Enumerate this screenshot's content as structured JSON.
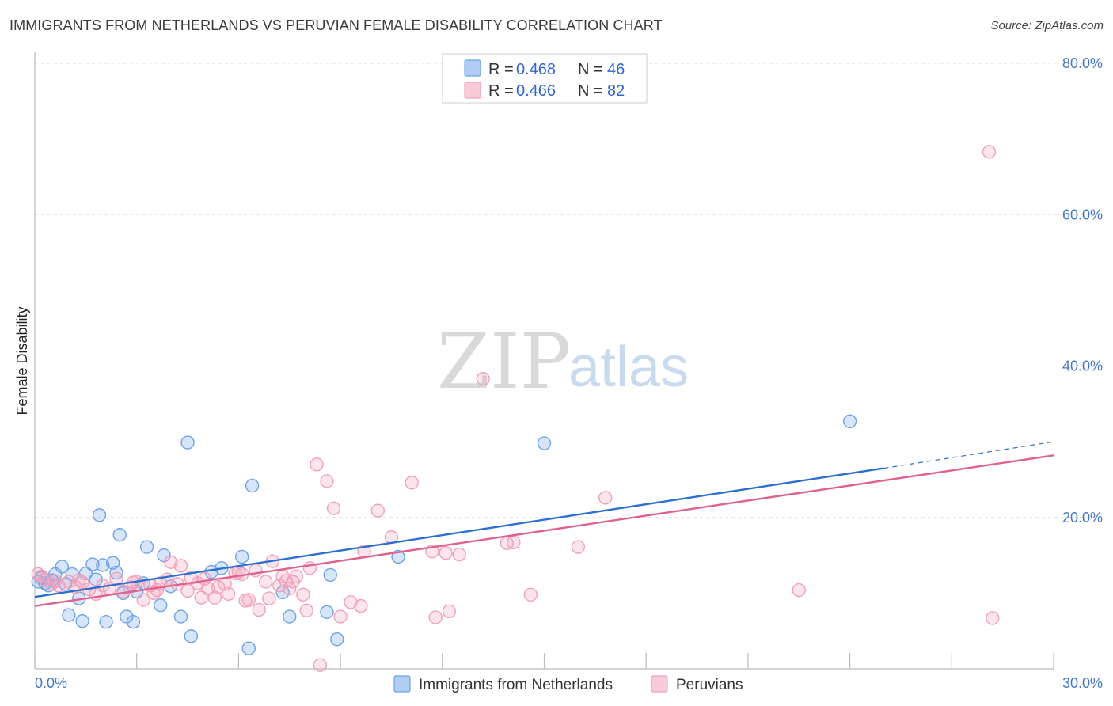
{
  "header": {
    "title": "IMMIGRANTS FROM NETHERLANDS VS PERUVIAN FEMALE DISABILITY CORRELATION CHART",
    "source": "Source: ZipAtlas.com"
  },
  "watermark": {
    "zip": "ZIP",
    "atlas": "atlas"
  },
  "chart_data": {
    "type": "scatter",
    "title": "IMMIGRANTS FROM NETHERLANDS VS PERUVIAN FEMALE DISABILITY CORRELATION CHART",
    "xlabel": "",
    "ylabel": "Female Disability",
    "xlim": [
      0,
      30
    ],
    "ylim": [
      0,
      80
    ],
    "x_tick_labels": [
      "0.0%",
      "30.0%"
    ],
    "y_ticks": [
      20,
      40,
      60,
      80
    ],
    "y_tick_labels": [
      "20.0%",
      "40.0%",
      "60.0%",
      "80.0%"
    ],
    "grid": true,
    "legend_position": "top-center",
    "stats": [
      {
        "r_label": "R = ",
        "r": "0.468",
        "n_label": "N = ",
        "n": "46"
      },
      {
        "r_label": "R = ",
        "r": "0.466",
        "n_label": "N = ",
        "n": "82"
      }
    ],
    "series": [
      {
        "name": "Immigrants from Netherlands",
        "color": "#6fa3e8",
        "line_color": "#2a6fd1",
        "trend": {
          "x0": 0,
          "y0": 9.5,
          "x1": 25.0,
          "y1": 26.5,
          "dash_to_x": 30,
          "dash_to_y": 30.0
        },
        "points": [
          [
            0.1,
            11.5
          ],
          [
            0.3,
            11.3
          ],
          [
            0.5,
            11.7
          ],
          [
            0.6,
            12.5
          ],
          [
            0.8,
            13.5
          ],
          [
            0.9,
            11.2
          ],
          [
            1.0,
            7.1
          ],
          [
            1.1,
            12.5
          ],
          [
            1.3,
            9.3
          ],
          [
            1.4,
            6.3
          ],
          [
            1.5,
            12.6
          ],
          [
            1.7,
            13.8
          ],
          [
            1.8,
            11.8
          ],
          [
            1.9,
            20.3
          ],
          [
            2.0,
            13.7
          ],
          [
            2.1,
            6.2
          ],
          [
            2.3,
            14.0
          ],
          [
            2.4,
            12.7
          ],
          [
            2.5,
            17.7
          ],
          [
            2.6,
            10.0
          ],
          [
            2.7,
            6.9
          ],
          [
            2.9,
            6.2
          ],
          [
            3.0,
            10.2
          ],
          [
            3.2,
            11.3
          ],
          [
            3.3,
            16.1
          ],
          [
            3.8,
            15.0
          ],
          [
            3.7,
            8.4
          ],
          [
            4.0,
            10.9
          ],
          [
            4.3,
            6.9
          ],
          [
            4.5,
            29.9
          ],
          [
            4.6,
            4.3
          ],
          [
            5.2,
            12.8
          ],
          [
            5.5,
            13.3
          ],
          [
            6.1,
            14.8
          ],
          [
            6.3,
            2.7
          ],
          [
            6.4,
            24.2
          ],
          [
            7.3,
            10.1
          ],
          [
            7.5,
            6.9
          ],
          [
            8.6,
            7.5
          ],
          [
            8.7,
            12.4
          ],
          [
            8.9,
            3.9
          ],
          [
            10.7,
            14.8
          ],
          [
            15.0,
            29.8
          ],
          [
            24.0,
            32.7
          ],
          [
            0.2,
            12.0
          ],
          [
            0.4,
            11.0
          ]
        ]
      },
      {
        "name": "Peruvians",
        "color": "#f2a0b9",
        "line_color": "#e0608e",
        "trend": {
          "x0": 0,
          "y0": 8.3,
          "x1": 30,
          "y1": 28.2
        },
        "points": [
          [
            0.1,
            12.5
          ],
          [
            0.3,
            11.8
          ],
          [
            0.5,
            11.2
          ],
          [
            0.7,
            11.0
          ],
          [
            1.0,
            11.5
          ],
          [
            1.2,
            10.8
          ],
          [
            1.4,
            11.4
          ],
          [
            1.6,
            10.5
          ],
          [
            1.8,
            9.9
          ],
          [
            2.0,
            11.0
          ],
          [
            2.2,
            10.6
          ],
          [
            2.4,
            11.9
          ],
          [
            2.6,
            10.2
          ],
          [
            2.8,
            10.8
          ],
          [
            3.0,
            11.5
          ],
          [
            3.2,
            9.1
          ],
          [
            3.4,
            11.0
          ],
          [
            3.5,
            10.0
          ],
          [
            3.7,
            11.3
          ],
          [
            3.9,
            11.8
          ],
          [
            4.0,
            14.1
          ],
          [
            4.2,
            11.2
          ],
          [
            4.3,
            13.6
          ],
          [
            4.5,
            10.3
          ],
          [
            4.6,
            12.0
          ],
          [
            4.8,
            11.3
          ],
          [
            4.9,
            9.4
          ],
          [
            5.1,
            10.6
          ],
          [
            5.3,
            9.4
          ],
          [
            5.4,
            10.8
          ],
          [
            5.6,
            11.2
          ],
          [
            5.7,
            9.9
          ],
          [
            5.9,
            12.6
          ],
          [
            6.1,
            12.5
          ],
          [
            6.2,
            9.0
          ],
          [
            6.3,
            9.1
          ],
          [
            6.5,
            13.0
          ],
          [
            6.6,
            7.8
          ],
          [
            6.8,
            11.5
          ],
          [
            6.9,
            9.3
          ],
          [
            7.0,
            14.2
          ],
          [
            7.2,
            11.0
          ],
          [
            7.3,
            12.2
          ],
          [
            7.5,
            10.6
          ],
          [
            7.6,
            11.5
          ],
          [
            7.7,
            12.2
          ],
          [
            7.9,
            9.8
          ],
          [
            8.0,
            7.7
          ],
          [
            8.1,
            13.3
          ],
          [
            8.3,
            27.0
          ],
          [
            8.4,
            0.5
          ],
          [
            8.6,
            24.8
          ],
          [
            8.8,
            21.2
          ],
          [
            9.0,
            6.9
          ],
          [
            9.3,
            8.8
          ],
          [
            9.6,
            8.3
          ],
          [
            9.7,
            15.5
          ],
          [
            10.1,
            20.9
          ],
          [
            10.5,
            17.4
          ],
          [
            11.1,
            24.6
          ],
          [
            11.7,
            15.5
          ],
          [
            11.8,
            6.8
          ],
          [
            12.1,
            15.3
          ],
          [
            12.2,
            7.6
          ],
          [
            12.5,
            15.1
          ],
          [
            13.2,
            38.3
          ],
          [
            14.1,
            16.7
          ],
          [
            14.6,
            9.8
          ],
          [
            16.0,
            16.1
          ],
          [
            16.8,
            22.6
          ],
          [
            22.5,
            10.4
          ],
          [
            28.1,
            68.3
          ],
          [
            28.2,
            6.7
          ],
          [
            0.2,
            12.2
          ],
          [
            0.6,
            11.6
          ],
          [
            1.3,
            11.7
          ],
          [
            2.9,
            11.4
          ],
          [
            3.6,
            10.4
          ],
          [
            5.0,
            11.9
          ],
          [
            6.0,
            12.8
          ],
          [
            7.4,
            11.6
          ],
          [
            13.9,
            16.6
          ]
        ]
      }
    ]
  }
}
